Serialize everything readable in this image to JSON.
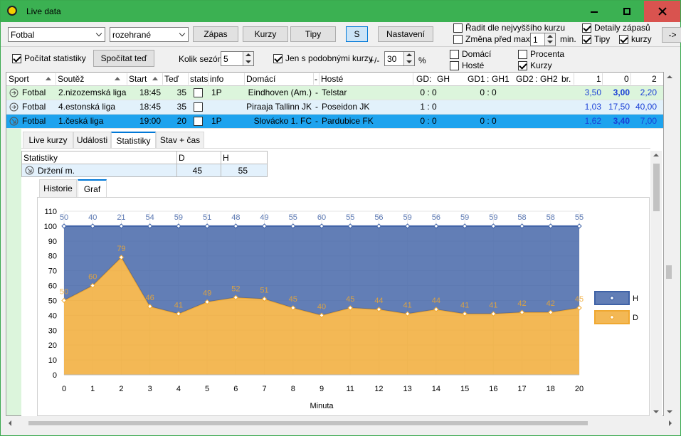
{
  "window": {
    "title": "Live data"
  },
  "toolbar": {
    "sport": "Fotbal",
    "state": "rozehrané",
    "buttons": [
      "Zápas",
      "Kurzy",
      "Tipy",
      "S",
      "Nastavení"
    ],
    "active_button": 3,
    "sort_max": {
      "label": "Řadit dle nejvyššího kurzu",
      "checked": false
    },
    "change_before": {
      "label": "Změna před max.",
      "checked": false
    },
    "change_minutes": "1",
    "minutes_unit": "min.",
    "details": {
      "label": "Detaily zápasů",
      "checked": true
    },
    "tips": {
      "label": "Tipy",
      "checked": true
    },
    "odds": {
      "label": "kurzy",
      "checked": true
    },
    "more": "->"
  },
  "options": {
    "compute_stats": {
      "label": "Počítat statistiky",
      "checked": true
    },
    "compute_now": "Spočítat teď",
    "seasons_label": "Kolik sezón",
    "seasons": "5",
    "similar_odds": {
      "label": "Jen s podobnými kurzy",
      "checked": true
    },
    "tolerance_label": "+/-",
    "tolerance": "30",
    "tolerance_unit": "%",
    "home": {
      "label": "Domácí",
      "checked": false
    },
    "away": {
      "label": "Hosté",
      "checked": false
    },
    "percent": {
      "label": "Procenta",
      "checked": false
    },
    "odds": {
      "label": "Kurzy",
      "checked": true
    }
  },
  "grid": {
    "columns": [
      "Sport",
      "Soutěž",
      "Start",
      "Teď",
      "stats",
      "info",
      "Domácí",
      "-",
      "Hosté",
      "GD",
      ":",
      "GH",
      "GD1",
      ":",
      "GH1",
      "GD2",
      ":",
      "GH2",
      "br.",
      "1",
      "0",
      "2"
    ],
    "rows": [
      {
        "sport": "Fotbal",
        "league": "2.nizozemská liga",
        "start": "18:45",
        "now": "35",
        "info": "1P",
        "home": "Eindhoven (Am.)",
        "sep": "-",
        "away": "Telstar",
        "score": "0 : 0",
        "score1": "0 : 0",
        "odds": [
          "3,50",
          "3,00",
          "2,20"
        ],
        "highlight": 1,
        "color": "#dcf5dc"
      },
      {
        "sport": "Fotbal",
        "league": "4.estonská liga",
        "start": "18:45",
        "now": "35",
        "home": "Piraaja Tallinn JK",
        "sep": "-",
        "away": "Poseidon JK",
        "score": "1 : 0",
        "odds": [
          "1,03",
          "17,50",
          "40,00"
        ],
        "color": "#e2f1fb"
      },
      {
        "sport": "Fotbal",
        "league": "1.česká liga",
        "start": "19:00",
        "now": "20",
        "info": "1P",
        "home": "Slovácko 1. FC",
        "sep": "-",
        "away": "Pardubice FK",
        "score": "0 : 0",
        "score1": "0 : 0",
        "odds": [
          "1,62",
          "3,40",
          "7,00"
        ],
        "highlight": 1,
        "color": "#1ea3ee"
      }
    ]
  },
  "detail": {
    "tabs": [
      "Live kurzy",
      "Události",
      "Statistiky",
      "Stav + čas"
    ],
    "active_tab": 2,
    "stats": {
      "header": [
        "Statistiky",
        "D",
        "H"
      ],
      "rows": [
        {
          "label": "Držení m.",
          "values": [
            "45",
            "55"
          ]
        }
      ]
    },
    "subtabs": [
      "Historie",
      "Graf"
    ],
    "active_subtab": 1
  },
  "chart_data": {
    "type": "area",
    "stacked": true,
    "xlabel": "Minuta",
    "categories": [
      "0",
      "1",
      "2",
      "3",
      "4",
      "5",
      "6",
      "7",
      "8",
      "9",
      "11",
      "12",
      "13",
      "14",
      "15",
      "16",
      "17",
      "18",
      "20"
    ],
    "series": [
      {
        "name": "D",
        "color": "#f0a830",
        "values": [
          50,
          60,
          79,
          46,
          41,
          49,
          52,
          51,
          45,
          40,
          45,
          44,
          41,
          44,
          41,
          41,
          42,
          42,
          45
        ]
      },
      {
        "name": "H",
        "color": "#3f62a6",
        "values": [
          50,
          40,
          21,
          54,
          59,
          51,
          48,
          49,
          55,
          60,
          55,
          56,
          59,
          56,
          59,
          59,
          58,
          58,
          55
        ]
      }
    ],
    "ylim": [
      0,
      110
    ],
    "yticks": [
      0,
      10,
      20,
      30,
      40,
      50,
      60,
      70,
      80,
      90,
      100,
      110
    ],
    "grid": true,
    "legend": "right"
  }
}
